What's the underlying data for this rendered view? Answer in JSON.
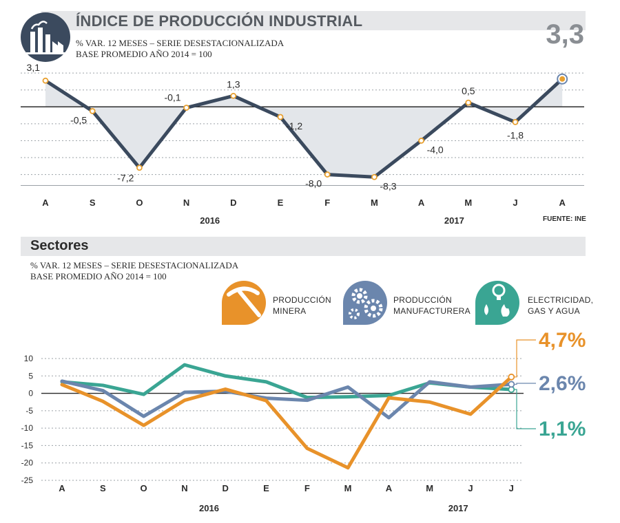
{
  "header": {
    "title": "ÍNDICE DE PRODUCCIÓN INDUSTRIAL",
    "subtitle_line1": "% VAR. 12 MESES – SERIE DESESTACIONALIZADA",
    "subtitle_line2": "BASE PROMEDIO AÑO 2014 = 100",
    "latest_value": "3,3",
    "source": "FUENTE: INE",
    "icon": "factory-icon"
  },
  "sectors": {
    "title": "Sectores",
    "subtitle_line1": "% VAR. 12 MESES – SERIE DESESTACIONALIZADA",
    "subtitle_line2": "BASE PROMEDIO AÑO 2014 = 100",
    "legend": [
      {
        "line1": "PRODUCCIÓN",
        "line2": "MINERA",
        "icon": "pickaxe-icon",
        "color": "#e8922a"
      },
      {
        "line1": "PRODUCCIÓN",
        "line2": "MANUFACTURERA",
        "icon": "gears-icon",
        "color": "#6b86ad"
      },
      {
        "line1": "ELECTRICIDAD,",
        "line2": "GAS Y AGUA",
        "icon": "utilities-icon",
        "color": "#3aa593"
      }
    ],
    "end_labels": {
      "mineria": "4,7%",
      "manufactura": "2,6%",
      "electricidad": "1,1%"
    }
  },
  "colors": {
    "main_line": "#3b4a5e",
    "mineria": "#e8922a",
    "manufactura": "#6b86ad",
    "electricidad": "#3aa593",
    "accent_point": "#e8a030"
  },
  "chart_data": [
    {
      "type": "line",
      "title": "ÍNDICE DE PRODUCCIÓN INDUSTRIAL",
      "categories": [
        "A",
        "S",
        "O",
        "N",
        "D",
        "E",
        "F",
        "M",
        "A",
        "M",
        "J",
        "A"
      ],
      "year_labels": [
        {
          "label": "2016",
          "index": 3.5
        },
        {
          "label": "2017",
          "index": 8.7
        }
      ],
      "values": [
        3.1,
        -0.5,
        -7.2,
        -0.1,
        1.3,
        -1.2,
        -8.0,
        -8.3,
        -4.0,
        0.5,
        -1.8,
        3.3
      ],
      "value_labels": [
        "3,1",
        "-0,5",
        "-7,2",
        "-0,1",
        "1,3",
        "-1,2",
        "-8,0",
        "-8,3",
        "-4,0",
        "0,5",
        "-1,8",
        "3,3"
      ],
      "ylim": [
        -9.5,
        4.5
      ],
      "grid": true
    },
    {
      "type": "line",
      "title": "Sectores",
      "categories": [
        "A",
        "S",
        "O",
        "N",
        "D",
        "E",
        "F",
        "M",
        "A",
        "M",
        "J",
        "J"
      ],
      "year_labels": [
        {
          "label": "2016",
          "index": 3.6
        },
        {
          "label": "2017",
          "index": 9.7
        }
      ],
      "yticks": [
        10,
        5,
        0,
        -5,
        -10,
        -15,
        -20,
        -25
      ],
      "ylim": [
        -25,
        10
      ],
      "grid": true,
      "series": [
        {
          "name": "PRODUCCIÓN MINERA",
          "key": "mineria",
          "values": [
            2.5,
            -2.3,
            -9.2,
            -2.0,
            1.2,
            -2.1,
            -15.8,
            -21.4,
            -1.3,
            -2.5,
            -6.0,
            4.7
          ]
        },
        {
          "name": "PRODUCCIÓN MANUFACTURERA",
          "key": "manufactura",
          "values": [
            3.5,
            0.8,
            -6.6,
            0.3,
            0.6,
            -1.4,
            -2.0,
            1.8,
            -7.0,
            3.3,
            1.8,
            2.6
          ]
        },
        {
          "name": "ELECTRICIDAD, GAS Y AGUA",
          "key": "electricidad",
          "values": [
            3.3,
            2.3,
            -0.3,
            8.2,
            5.0,
            3.3,
            -1.2,
            -1.0,
            -0.6,
            3.0,
            1.8,
            1.1
          ]
        }
      ]
    }
  ]
}
